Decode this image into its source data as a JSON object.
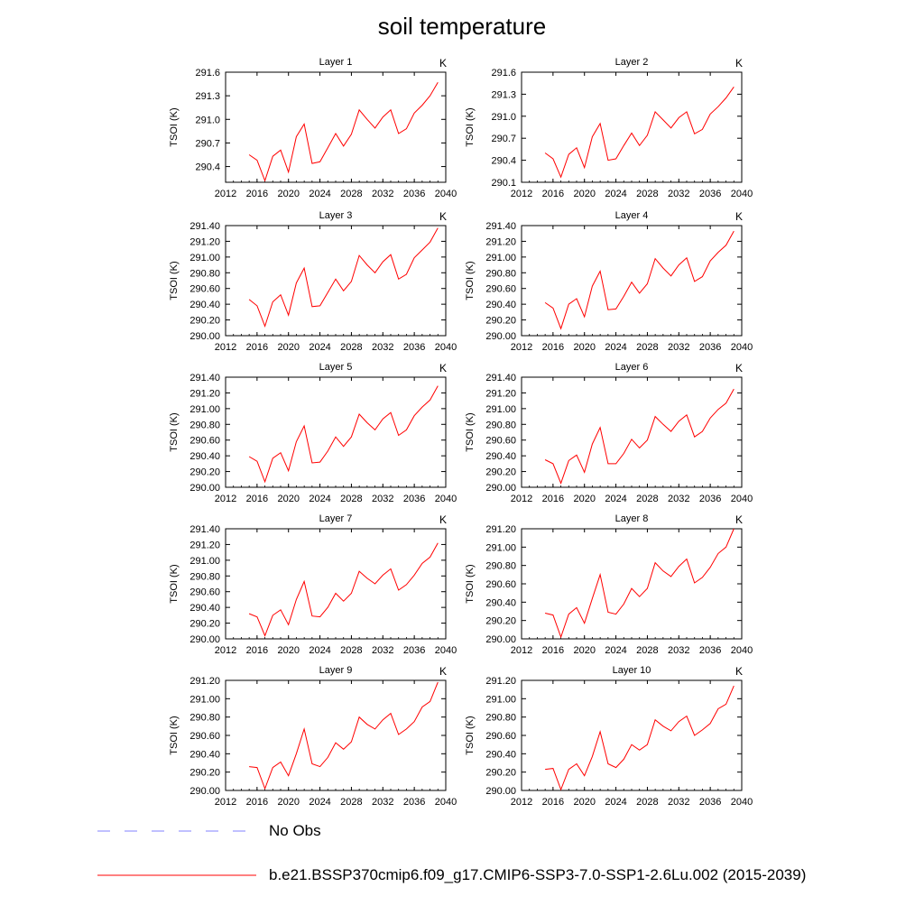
{
  "title": "soil temperature",
  "legend": [
    {
      "label": "No Obs",
      "color": "#8080ff",
      "dash": true
    },
    {
      "label": "b.e21.BSSP370cmip6.f09_g17.CMIP6-SSP3-7.0-SSP1-2.6Lu.002 (2015-2039)",
      "color": "#ff0000",
      "dash": false
    }
  ],
  "chart_data": [
    {
      "type": "line",
      "title": "Layer 1",
      "unit": "K",
      "ylabel": "TSOI  (K)",
      "xlim": [
        2012,
        2040
      ],
      "xticks": [
        2012,
        2016,
        2020,
        2024,
        2028,
        2032,
        2036,
        2040
      ],
      "ylim": [
        290.2,
        291.6
      ],
      "yticks": [
        "290.4",
        "290.7",
        "291.0",
        "291.3",
        "291.6"
      ],
      "x": [
        2015,
        2016,
        2017,
        2018,
        2019,
        2020,
        2021,
        2022,
        2023,
        2024,
        2025,
        2026,
        2027,
        2028,
        2029,
        2030,
        2031,
        2032,
        2033,
        2034,
        2035,
        2036,
        2037,
        2038,
        2039
      ],
      "series": [
        {
          "name": "b.e21.BSSP370cmip6.f09_g17.CMIP6-SSP3-7.0-SSP1-2.6Lu.002 (2015-2039)",
          "values": [
            290.55,
            290.48,
            290.22,
            290.53,
            290.61,
            290.33,
            290.78,
            290.94,
            290.44,
            290.46,
            290.64,
            290.82,
            290.66,
            290.81,
            291.12,
            291.0,
            290.89,
            291.03,
            291.12,
            290.82,
            290.88,
            291.08,
            291.18,
            291.3,
            291.47
          ]
        }
      ]
    },
    {
      "type": "line",
      "title": "Layer 2",
      "unit": "K",
      "ylabel": "TSOI  (K)",
      "xlim": [
        2012,
        2040
      ],
      "xticks": [
        2012,
        2016,
        2020,
        2024,
        2028,
        2032,
        2036,
        2040
      ],
      "ylim": [
        290.1,
        291.6
      ],
      "yticks": [
        "290.1",
        "290.4",
        "290.7",
        "291.0",
        "291.3",
        "291.6"
      ],
      "x": [
        2015,
        2016,
        2017,
        2018,
        2019,
        2020,
        2021,
        2022,
        2023,
        2024,
        2025,
        2026,
        2027,
        2028,
        2029,
        2030,
        2031,
        2032,
        2033,
        2034,
        2035,
        2036,
        2037,
        2038,
        2039
      ],
      "series": [
        {
          "name": "b.e21.BSSP370cmip6.f09_g17.CMIP6-SSP3-7.0-SSP1-2.6Lu.002 (2015-2039)",
          "values": [
            290.5,
            290.42,
            290.17,
            290.48,
            290.57,
            290.3,
            290.72,
            290.9,
            290.4,
            290.42,
            290.6,
            290.77,
            290.6,
            290.74,
            291.06,
            290.95,
            290.84,
            290.98,
            291.06,
            290.76,
            290.82,
            291.03,
            291.13,
            291.25,
            291.4
          ]
        }
      ]
    },
    {
      "type": "line",
      "title": "Layer 3",
      "unit": "K",
      "ylabel": "TSOI  (K)",
      "xlim": [
        2012,
        2040
      ],
      "xticks": [
        2012,
        2016,
        2020,
        2024,
        2028,
        2032,
        2036,
        2040
      ],
      "ylim": [
        290.0,
        291.4
      ],
      "yticks": [
        "290.00",
        "290.20",
        "290.40",
        "290.60",
        "290.80",
        "291.00",
        "291.20",
        "291.40"
      ],
      "x": [
        2015,
        2016,
        2017,
        2018,
        2019,
        2020,
        2021,
        2022,
        2023,
        2024,
        2025,
        2026,
        2027,
        2028,
        2029,
        2030,
        2031,
        2032,
        2033,
        2034,
        2035,
        2036,
        2037,
        2038,
        2039
      ],
      "series": [
        {
          "name": "b.e21.BSSP370cmip6.f09_g17.CMIP6-SSP3-7.0-SSP1-2.6Lu.002 (2015-2039)",
          "values": [
            290.46,
            290.38,
            290.12,
            290.43,
            290.52,
            290.26,
            290.67,
            290.86,
            290.37,
            290.38,
            290.55,
            290.72,
            290.57,
            290.69,
            291.02,
            290.9,
            290.8,
            290.94,
            291.03,
            290.72,
            290.78,
            290.99,
            291.09,
            291.19,
            291.37
          ]
        }
      ]
    },
    {
      "type": "line",
      "title": "Layer 4",
      "unit": "K",
      "ylabel": "TSOI  (K)",
      "xlim": [
        2012,
        2040
      ],
      "xticks": [
        2012,
        2016,
        2020,
        2024,
        2028,
        2032,
        2036,
        2040
      ],
      "ylim": [
        290.0,
        291.4
      ],
      "yticks": [
        "290.00",
        "290.20",
        "290.40",
        "290.60",
        "290.80",
        "291.00",
        "291.20",
        "291.40"
      ],
      "x": [
        2015,
        2016,
        2017,
        2018,
        2019,
        2020,
        2021,
        2022,
        2023,
        2024,
        2025,
        2026,
        2027,
        2028,
        2029,
        2030,
        2031,
        2032,
        2033,
        2034,
        2035,
        2036,
        2037,
        2038,
        2039
      ],
      "series": [
        {
          "name": "b.e21.BSSP370cmip6.f09_g17.CMIP6-SSP3-7.0-SSP1-2.6Lu.002 (2015-2039)",
          "values": [
            290.42,
            290.35,
            290.09,
            290.4,
            290.47,
            290.24,
            290.63,
            290.82,
            290.33,
            290.34,
            290.5,
            290.68,
            290.54,
            290.66,
            290.98,
            290.86,
            290.76,
            290.9,
            290.99,
            290.69,
            290.75,
            290.95,
            291.06,
            291.15,
            291.33
          ]
        }
      ]
    },
    {
      "type": "line",
      "title": "Layer 5",
      "unit": "K",
      "ylabel": "TSOI  (K)",
      "xlim": [
        2012,
        2040
      ],
      "xticks": [
        2012,
        2016,
        2020,
        2024,
        2028,
        2032,
        2036,
        2040
      ],
      "ylim": [
        290.0,
        291.4
      ],
      "yticks": [
        "290.00",
        "290.20",
        "290.40",
        "290.60",
        "290.80",
        "291.00",
        "291.20",
        "291.40"
      ],
      "x": [
        2015,
        2016,
        2017,
        2018,
        2019,
        2020,
        2021,
        2022,
        2023,
        2024,
        2025,
        2026,
        2027,
        2028,
        2029,
        2030,
        2031,
        2032,
        2033,
        2034,
        2035,
        2036,
        2037,
        2038,
        2039
      ],
      "series": [
        {
          "name": "b.e21.BSSP370cmip6.f09_g17.CMIP6-SSP3-7.0-SSP1-2.6Lu.002 (2015-2039)",
          "values": [
            290.39,
            290.33,
            290.07,
            290.37,
            290.44,
            290.21,
            290.58,
            290.78,
            290.31,
            290.32,
            290.46,
            290.64,
            290.52,
            290.64,
            290.93,
            290.82,
            290.73,
            290.87,
            290.95,
            290.66,
            290.73,
            290.91,
            291.02,
            291.11,
            291.29
          ]
        }
      ]
    },
    {
      "type": "line",
      "title": "Layer 6",
      "unit": "K",
      "ylabel": "TSOI  (K)",
      "xlim": [
        2012,
        2040
      ],
      "xticks": [
        2012,
        2016,
        2020,
        2024,
        2028,
        2032,
        2036,
        2040
      ],
      "ylim": [
        290.0,
        291.4
      ],
      "yticks": [
        "290.00",
        "290.20",
        "290.40",
        "290.60",
        "290.80",
        "291.00",
        "291.20",
        "291.40"
      ],
      "x": [
        2015,
        2016,
        2017,
        2018,
        2019,
        2020,
        2021,
        2022,
        2023,
        2024,
        2025,
        2026,
        2027,
        2028,
        2029,
        2030,
        2031,
        2032,
        2033,
        2034,
        2035,
        2036,
        2037,
        2038,
        2039
      ],
      "series": [
        {
          "name": "b.e21.BSSP370cmip6.f09_g17.CMIP6-SSP3-7.0-SSP1-2.6Lu.002 (2015-2039)",
          "values": [
            290.35,
            290.3,
            290.05,
            290.34,
            290.41,
            290.19,
            290.55,
            290.76,
            290.3,
            290.3,
            290.43,
            290.61,
            290.5,
            290.6,
            290.9,
            290.8,
            290.71,
            290.84,
            290.92,
            290.64,
            290.71,
            290.88,
            290.99,
            291.07,
            291.25
          ]
        }
      ]
    },
    {
      "type": "line",
      "title": "Layer 7",
      "unit": "K",
      "ylabel": "TSOI  (K)",
      "xlim": [
        2012,
        2040
      ],
      "xticks": [
        2012,
        2016,
        2020,
        2024,
        2028,
        2032,
        2036,
        2040
      ],
      "ylim": [
        290.0,
        291.4
      ],
      "yticks": [
        "290.00",
        "290.20",
        "290.40",
        "290.60",
        "290.80",
        "291.00",
        "291.20",
        "291.40"
      ],
      "x": [
        2015,
        2016,
        2017,
        2018,
        2019,
        2020,
        2021,
        2022,
        2023,
        2024,
        2025,
        2026,
        2027,
        2028,
        2029,
        2030,
        2031,
        2032,
        2033,
        2034,
        2035,
        2036,
        2037,
        2038,
        2039
      ],
      "series": [
        {
          "name": "b.e21.BSSP370cmip6.f09_g17.CMIP6-SSP3-7.0-SSP1-2.6Lu.002 (2015-2039)",
          "values": [
            290.32,
            290.28,
            290.04,
            290.3,
            290.37,
            290.18,
            290.5,
            290.73,
            290.29,
            290.28,
            290.4,
            290.58,
            290.48,
            290.58,
            290.86,
            290.77,
            290.7,
            290.81,
            290.89,
            290.62,
            290.69,
            290.81,
            290.96,
            291.04,
            291.22
          ]
        }
      ]
    },
    {
      "type": "line",
      "title": "Layer 8",
      "unit": "K",
      "ylabel": "TSOI  (K)",
      "xlim": [
        2012,
        2040
      ],
      "xticks": [
        2012,
        2016,
        2020,
        2024,
        2028,
        2032,
        2036,
        2040
      ],
      "ylim": [
        290.0,
        291.2
      ],
      "yticks": [
        "290.00",
        "290.20",
        "290.40",
        "290.60",
        "290.80",
        "291.00",
        "291.20"
      ],
      "x": [
        2015,
        2016,
        2017,
        2018,
        2019,
        2020,
        2021,
        2022,
        2023,
        2024,
        2025,
        2026,
        2027,
        2028,
        2029,
        2030,
        2031,
        2032,
        2033,
        2034,
        2035,
        2036,
        2037,
        2038,
        2039
      ],
      "series": [
        {
          "name": "b.e21.BSSP370cmip6.f09_g17.CMIP6-SSP3-7.0-SSP1-2.6Lu.002 (2015-2039)",
          "values": [
            290.28,
            290.26,
            290.02,
            290.27,
            290.34,
            290.17,
            290.44,
            290.7,
            290.29,
            290.27,
            290.38,
            290.55,
            290.46,
            290.55,
            290.83,
            290.74,
            290.68,
            290.79,
            290.87,
            290.61,
            290.67,
            290.78,
            290.93,
            291.0,
            291.2
          ]
        }
      ]
    },
    {
      "type": "line",
      "title": "Layer 9",
      "unit": "K",
      "ylabel": "TSOI  (K)",
      "xlim": [
        2012,
        2040
      ],
      "xticks": [
        2012,
        2016,
        2020,
        2024,
        2028,
        2032,
        2036,
        2040
      ],
      "ylim": [
        290.0,
        291.2
      ],
      "yticks": [
        "290.00",
        "290.20",
        "290.40",
        "290.60",
        "290.80",
        "291.00",
        "291.20"
      ],
      "x": [
        2015,
        2016,
        2017,
        2018,
        2019,
        2020,
        2021,
        2022,
        2023,
        2024,
        2025,
        2026,
        2027,
        2028,
        2029,
        2030,
        2031,
        2032,
        2033,
        2034,
        2035,
        2036,
        2037,
        2038,
        2039
      ],
      "series": [
        {
          "name": "b.e21.BSSP370cmip6.f09_g17.CMIP6-SSP3-7.0-SSP1-2.6Lu.002 (2015-2039)",
          "values": [
            290.26,
            290.25,
            290.02,
            290.25,
            290.31,
            290.16,
            290.4,
            290.67,
            290.29,
            290.26,
            290.36,
            290.52,
            290.45,
            290.53,
            290.8,
            290.72,
            290.67,
            290.77,
            290.84,
            290.61,
            290.67,
            290.75,
            290.91,
            290.97,
            291.18
          ]
        }
      ]
    },
    {
      "type": "line",
      "title": "Layer 10",
      "unit": "K",
      "ylabel": "TSOI  (K)",
      "xlim": [
        2012,
        2040
      ],
      "xticks": [
        2012,
        2016,
        2020,
        2024,
        2028,
        2032,
        2036,
        2040
      ],
      "ylim": [
        290.0,
        291.2
      ],
      "yticks": [
        "290.00",
        "290.20",
        "290.40",
        "290.60",
        "290.80",
        "291.00",
        "291.20"
      ],
      "x": [
        2015,
        2016,
        2017,
        2018,
        2019,
        2020,
        2021,
        2022,
        2023,
        2024,
        2025,
        2026,
        2027,
        2028,
        2029,
        2030,
        2031,
        2032,
        2033,
        2034,
        2035,
        2036,
        2037,
        2038,
        2039
      ],
      "series": [
        {
          "name": "b.e21.BSSP370cmip6.f09_g17.CMIP6-SSP3-7.0-SSP1-2.6Lu.002 (2015-2039)",
          "values": [
            290.23,
            290.24,
            290.01,
            290.23,
            290.29,
            290.16,
            290.37,
            290.64,
            290.29,
            290.25,
            290.34,
            290.5,
            290.44,
            290.5,
            290.77,
            290.7,
            290.65,
            290.75,
            290.81,
            290.6,
            290.66,
            290.73,
            290.89,
            290.94,
            291.14
          ]
        }
      ]
    }
  ]
}
